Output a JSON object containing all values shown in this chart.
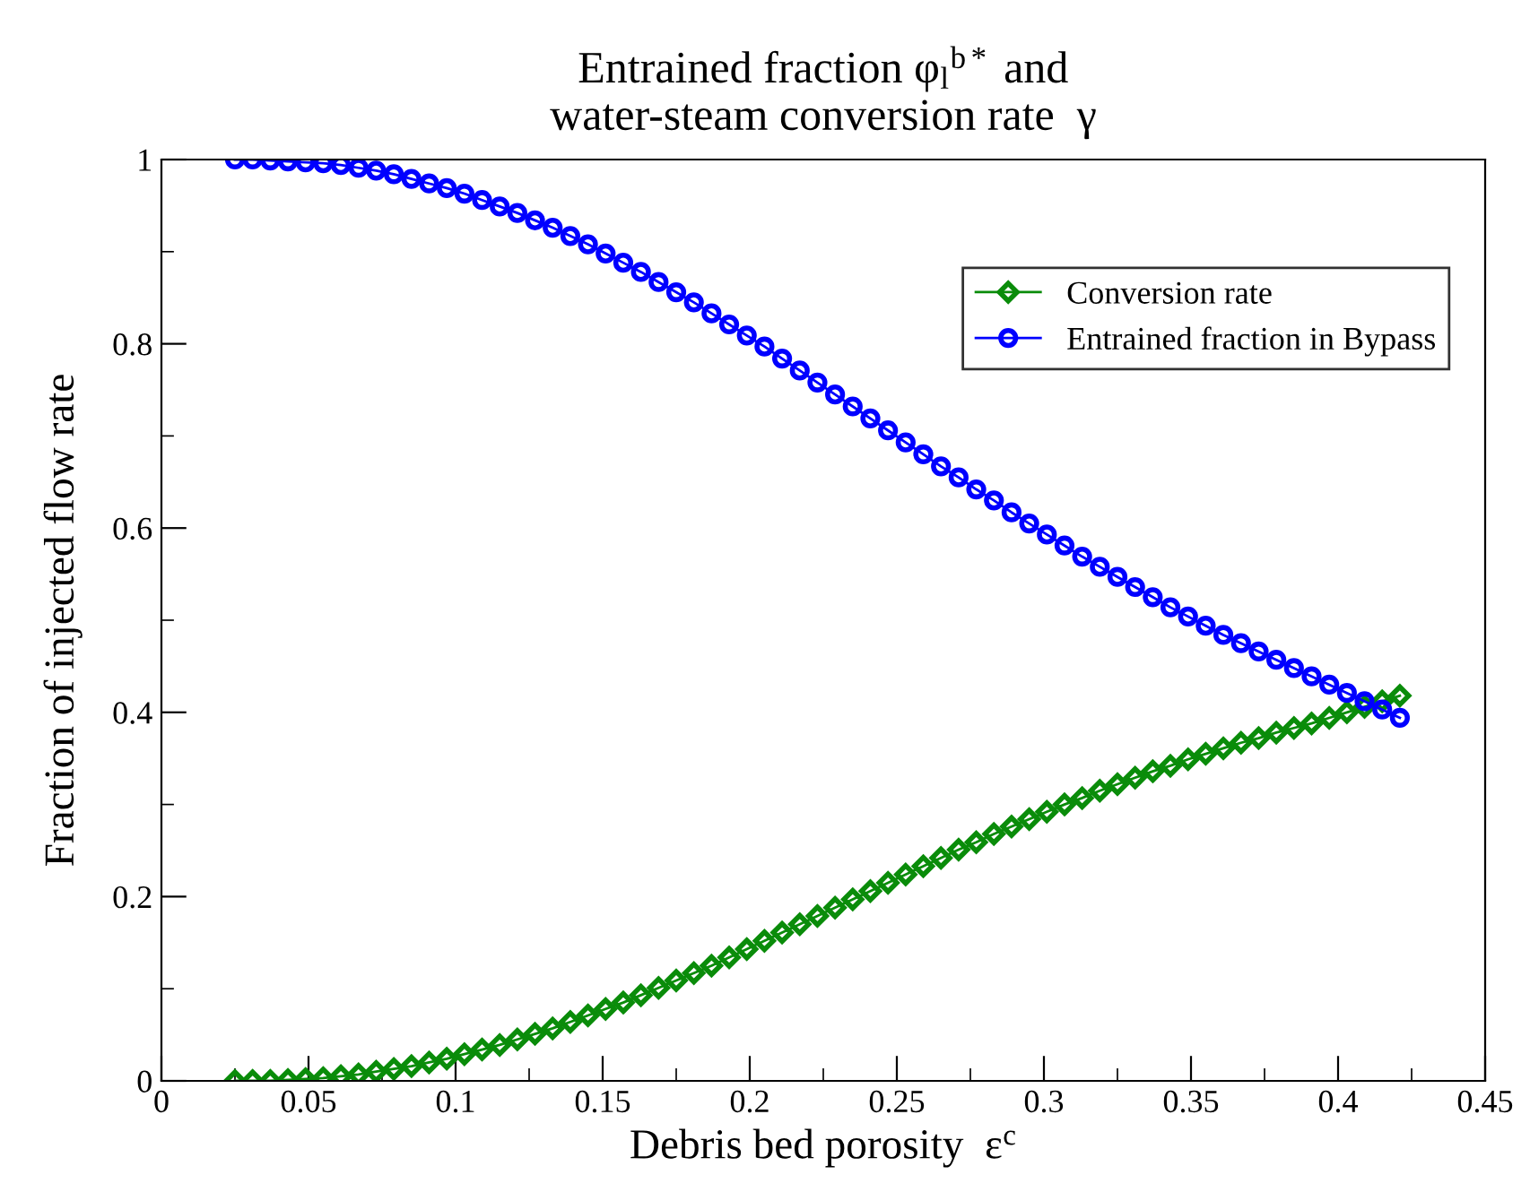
{
  "chart_data": {
    "type": "line",
    "title": "Entrained fraction φ$_{l}$$^{b*}$ and\nwater-steam conversion rate  γ",
    "xlabel": "Debris bed porosity  ε$^{c}$",
    "ylabel": "Fraction of injected flow rate",
    "x": [
      0.025,
      0.031,
      0.037,
      0.043,
      0.049,
      0.055,
      0.061,
      0.067,
      0.073,
      0.079,
      0.085,
      0.091,
      0.097,
      0.103,
      0.109,
      0.115,
      0.121,
      0.127,
      0.133,
      0.139,
      0.145,
      0.151,
      0.157,
      0.163,
      0.169,
      0.175,
      0.181,
      0.187,
      0.193,
      0.199,
      0.205,
      0.211,
      0.217,
      0.223,
      0.229,
      0.235,
      0.241,
      0.247,
      0.253,
      0.259,
      0.265,
      0.271,
      0.277,
      0.283,
      0.289,
      0.295,
      0.301,
      0.307,
      0.313,
      0.319,
      0.325,
      0.331,
      0.337,
      0.343,
      0.349,
      0.355,
      0.361,
      0.367,
      0.373,
      0.379,
      0.385,
      0.391,
      0.397,
      0.403,
      0.409,
      0.415,
      0.421
    ],
    "series": [
      {
        "name": "Conversion rate",
        "color": "#0a8c0a",
        "marker": "diamond",
        "values": [
          0,
          0,
          0,
          0.001,
          0.002,
          0.003,
          0.005,
          0.007,
          0.01,
          0.013,
          0.016,
          0.02,
          0.024,
          0.029,
          0.034,
          0.039,
          0.045,
          0.051,
          0.057,
          0.064,
          0.071,
          0.078,
          0.085,
          0.093,
          0.101,
          0.109,
          0.117,
          0.125,
          0.134,
          0.143,
          0.152,
          0.161,
          0.17,
          0.179,
          0.188,
          0.197,
          0.206,
          0.215,
          0.224,
          0.233,
          0.242,
          0.251,
          0.259,
          0.268,
          0.276,
          0.284,
          0.292,
          0.3,
          0.307,
          0.315,
          0.322,
          0.329,
          0.336,
          0.342,
          0.349,
          0.355,
          0.361,
          0.367,
          0.372,
          0.378,
          0.383,
          0.388,
          0.394,
          0.4,
          0.406,
          0.412,
          0.418
        ]
      },
      {
        "name": "Entrained fraction in Bypass",
        "color": "#0000ff",
        "marker": "circle",
        "values": [
          1.0,
          1.0,
          0.999,
          0.998,
          0.997,
          0.996,
          0.994,
          0.991,
          0.988,
          0.984,
          0.979,
          0.974,
          0.969,
          0.963,
          0.956,
          0.949,
          0.942,
          0.934,
          0.926,
          0.917,
          0.908,
          0.898,
          0.888,
          0.878,
          0.867,
          0.856,
          0.845,
          0.833,
          0.821,
          0.809,
          0.797,
          0.784,
          0.771,
          0.758,
          0.745,
          0.732,
          0.719,
          0.706,
          0.693,
          0.68,
          0.667,
          0.655,
          0.642,
          0.63,
          0.617,
          0.605,
          0.593,
          0.581,
          0.569,
          0.558,
          0.547,
          0.536,
          0.525,
          0.514,
          0.504,
          0.494,
          0.484,
          0.475,
          0.466,
          0.457,
          0.448,
          0.439,
          0.43,
          0.421,
          0.412,
          0.403,
          0.394
        ]
      }
    ],
    "xlim": [
      0,
      0.45
    ],
    "xticks": [
      0,
      0.05,
      0.1,
      0.15,
      0.2,
      0.25,
      0.3,
      0.35,
      0.4,
      0.45
    ],
    "ylim": [
      0,
      1
    ],
    "yticks": [
      0,
      0.2,
      0.4,
      0.6,
      0.8,
      1
    ],
    "grid": false,
    "legend": "top right"
  }
}
